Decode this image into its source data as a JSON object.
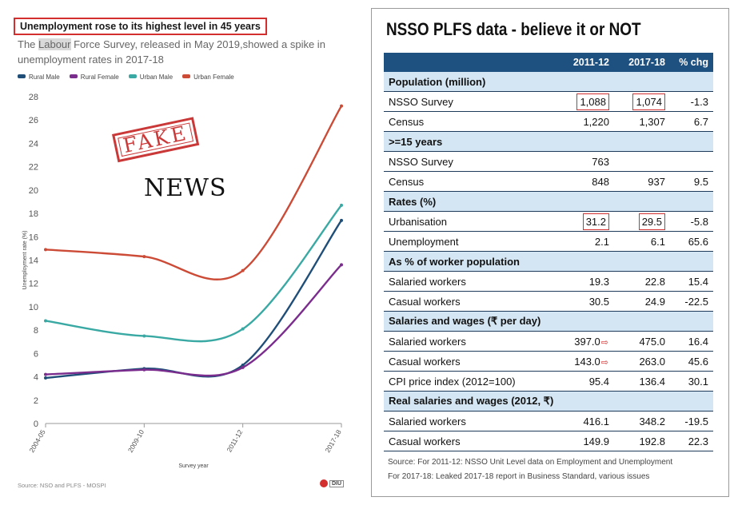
{
  "left": {
    "title": "Unemployment rose to its highest level in 45 years",
    "subtitle_pre": "The ",
    "subtitle_hl": "Labour",
    "subtitle_post": " Force Survey, released in May 2019,showed a spike in unemployment rates in 2017-18",
    "source": "Source: NSO and PLFS - MOSPI",
    "logo_text": "DIU",
    "stamp_text": "FAKE",
    "overlay_text": "NEWS"
  },
  "chart_data": {
    "type": "line",
    "categories": [
      "2004-05",
      "2009-10",
      "2011-12",
      "2017-18"
    ],
    "series": [
      {
        "name": "Rural Male",
        "color": "#1f4e79",
        "values": [
          3.9,
          4.7,
          5.0,
          17.4
        ]
      },
      {
        "name": "Rural Female",
        "color": "#7b2d8e",
        "values": [
          4.2,
          4.6,
          4.8,
          13.6
        ]
      },
      {
        "name": "Urban Male",
        "color": "#3aa9a4",
        "values": [
          8.8,
          7.5,
          8.1,
          18.7
        ]
      },
      {
        "name": "Urban Female",
        "color": "#cc4b37",
        "values": [
          14.9,
          14.3,
          13.1,
          27.2
        ]
      }
    ],
    "xlabel": "Survey year",
    "ylabel": "Unemployment rate (%)",
    "ylim": [
      0,
      28
    ],
    "yticks": [
      0,
      2,
      4,
      6,
      8,
      10,
      12,
      14,
      16,
      18,
      20,
      22,
      24,
      26,
      28
    ],
    "grid": false,
    "legend": "top-left"
  },
  "table": {
    "title": "NSSO PLFS data - believe it or NOT",
    "headers": [
      "",
      "2011-12",
      "2017-18",
      "% chg"
    ],
    "rows": [
      {
        "section": true,
        "label": "Population (million)"
      },
      {
        "label": "NSSO Survey",
        "a": "1,088",
        "b": "1,074",
        "c": "-1.3",
        "box_a": true,
        "box_b": true
      },
      {
        "label": "Census",
        "a": "1,220",
        "b": "1,307",
        "c": "6.7"
      },
      {
        "section": true,
        "label": ">=15 years"
      },
      {
        "label": "NSSO Survey",
        "a": "763",
        "b": "",
        "c": ""
      },
      {
        "label": "Census",
        "a": "848",
        "b": "937",
        "c": "9.5"
      },
      {
        "section": true,
        "label": "Rates (%)"
      },
      {
        "label": "Urbanisation",
        "a": "31.2",
        "b": "29.5",
        "c": "-5.8",
        "box_a": true,
        "box_b": true
      },
      {
        "label": "Unemployment",
        "a": "2.1",
        "b": "6.1",
        "c": "65.6"
      },
      {
        "section": true,
        "label": "As % of worker population"
      },
      {
        "label": "Salaried workers",
        "a": "19.3",
        "b": "22.8",
        "c": "15.4"
      },
      {
        "label": "Casual workers",
        "a": "30.5",
        "b": "24.9",
        "c": "-22.5"
      },
      {
        "section": true,
        "label": "Salaries and wages (₹ per day)"
      },
      {
        "label": "Salaried workers",
        "a": "397.0",
        "b": "475.0",
        "c": "16.4",
        "arrow": true
      },
      {
        "label": "Casual workers",
        "a": "143.0",
        "b": "263.0",
        "c": "45.6",
        "arrow": true
      },
      {
        "label": "CPI price index (2012=100)",
        "a": "95.4",
        "b": "136.4",
        "c": "30.1"
      },
      {
        "section": true,
        "label": "Real salaries and wages (2012, ₹)"
      },
      {
        "label": "Salaried workers",
        "a": "416.1",
        "b": "348.2",
        "c": "-19.5"
      },
      {
        "label": "Casual workers",
        "a": "149.9",
        "b": "192.8",
        "c": "22.3"
      }
    ],
    "source_line1": "Source: For 2011-12: NSSO Unit Level data on Employment and Unemployment",
    "source_line2": "For 2017-18: Leaked 2017-18 report in Business Standard, various issues"
  }
}
